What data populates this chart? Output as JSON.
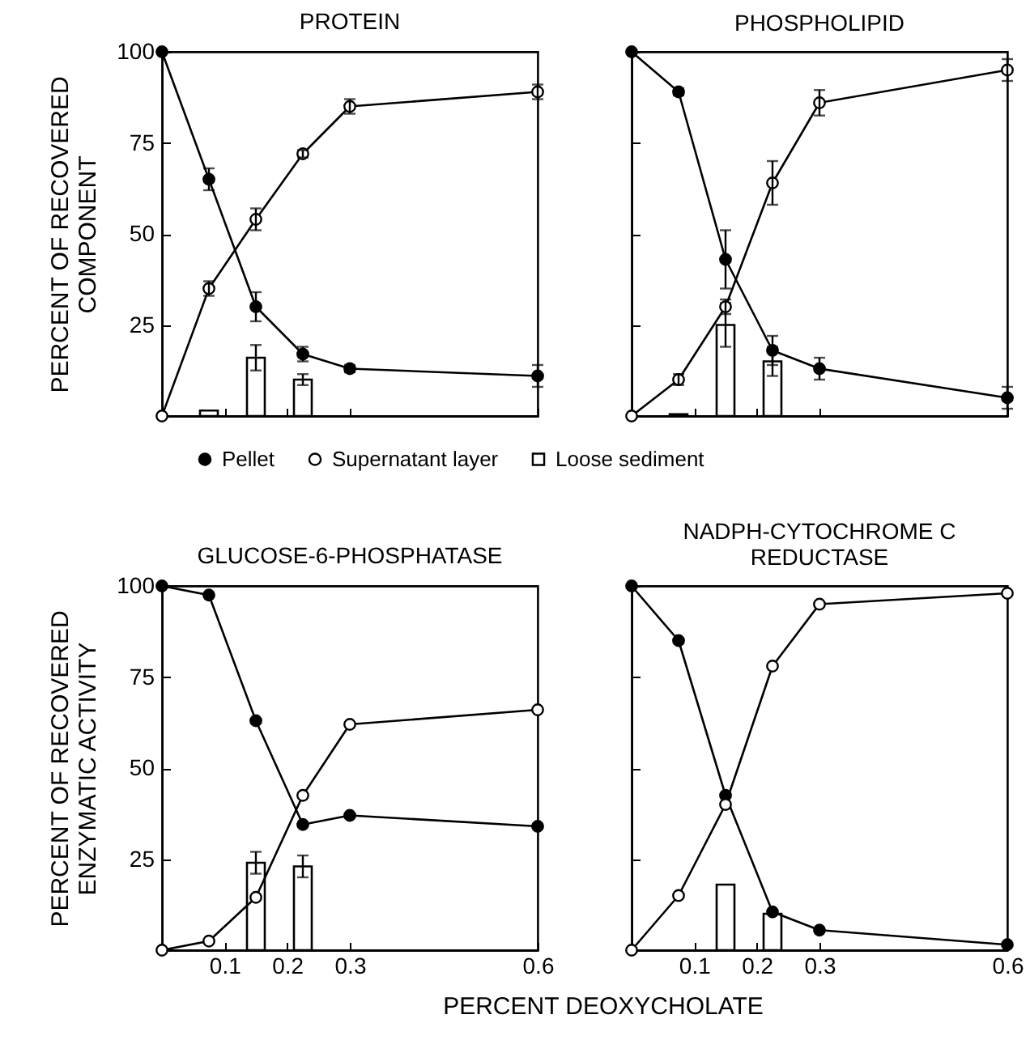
{
  "chart_data": [
    {
      "type": "line",
      "title": "PROTEIN",
      "ylabel": "PERCENT OF RECOVERED\nCOMPONENT",
      "x": [
        0,
        0.075,
        0.15,
        0.225,
        0.3,
        0.6
      ],
      "xlim": [
        0,
        0.6
      ],
      "xticks": [
        0.1,
        0.2,
        0.3,
        0.6
      ],
      "ylim": [
        0,
        100
      ],
      "yticks": [
        25,
        50,
        75,
        100
      ],
      "tick_labels": "y",
      "marker": "circle",
      "legend": "bottom",
      "series": [
        {
          "name": "Pellet",
          "type": "line",
          "color": "#000000",
          "values": [
            100,
            65,
            30,
            17,
            13,
            11
          ],
          "errors": [
            null,
            3,
            4,
            2,
            1,
            3
          ]
        },
        {
          "name": "Supernatant layer",
          "type": "line",
          "color": "#000000",
          "values": [
            0,
            35,
            54,
            72,
            85,
            89
          ],
          "errors": [
            null,
            2,
            3,
            1,
            2,
            2
          ]
        },
        {
          "name": "Loose sediment",
          "type": "bar",
          "color": "#000000",
          "values": [
            null,
            1.5,
            16,
            10,
            null,
            null
          ],
          "errors": [
            null,
            null,
            3.5,
            1.5,
            null,
            null
          ]
        }
      ]
    },
    {
      "type": "line",
      "title": "PHOSPHOLIPID",
      "x": [
        0,
        0.075,
        0.15,
        0.225,
        0.3,
        0.6
      ],
      "xlim": [
        0,
        0.6
      ],
      "xticks": [
        0.1,
        0.2,
        0.3,
        0.6
      ],
      "ylim": [
        0,
        100
      ],
      "yticks": [
        25,
        50,
        75,
        100
      ],
      "tick_labels": false,
      "marker": "circle",
      "series": [
        {
          "type": "line",
          "color": "#000000",
          "values": [
            100,
            89,
            43,
            18,
            13,
            5
          ],
          "errors": [
            null,
            1,
            8,
            4,
            3,
            3
          ]
        },
        {
          "type": "line",
          "color": "#000000",
          "values": [
            0,
            10,
            30,
            64,
            86,
            95
          ],
          "errors": [
            null,
            1.5,
            2,
            6,
            3.5,
            3
          ]
        },
        {
          "type": "bar",
          "color": "#000000",
          "values": [
            null,
            0.5,
            25,
            15,
            null,
            null
          ],
          "errors": [
            null,
            null,
            6,
            4,
            null,
            null
          ]
        }
      ]
    },
    {
      "type": "line",
      "title": "GLUCOSE-6-PHOSPHATASE",
      "ylabel": "PERCENT OF RECOVERED\nENZYMATIC  ACTIVITY",
      "xlabel": "PERCENT  DEOXYCHOLATE",
      "x": [
        0,
        0.075,
        0.15,
        0.225,
        0.3,
        0.6
      ],
      "xlim": [
        0,
        0.6
      ],
      "xticks": [
        0.1,
        0.2,
        0.3,
        0.6
      ],
      "ylim": [
        0,
        100
      ],
      "yticks": [
        25,
        50,
        75,
        100
      ],
      "marker": "circle",
      "series": [
        {
          "type": "line",
          "color": "#000000",
          "values": [
            100,
            97.5,
            63,
            34.5,
            37,
            34
          ]
        },
        {
          "type": "line",
          "color": "#000000",
          "values": [
            0,
            2.5,
            14.5,
            42.5,
            62,
            66
          ]
        },
        {
          "type": "bar",
          "color": "#000000",
          "values": [
            null,
            null,
            24,
            23,
            null,
            null
          ],
          "errors": [
            null,
            null,
            3,
            3,
            null,
            null
          ]
        }
      ]
    },
    {
      "type": "line",
      "title": "NADPH-CYTOCHROME C\nREDUCTASE",
      "x": [
        0,
        0.075,
        0.15,
        0.225,
        0.3,
        0.6
      ],
      "xlim": [
        0,
        0.6
      ],
      "xticks": [
        0.1,
        0.2,
        0.3,
        0.6
      ],
      "ylim": [
        0,
        100
      ],
      "yticks": [
        25,
        50,
        75,
        100
      ],
      "tick_labels": "x",
      "marker": "circle",
      "series": [
        {
          "type": "line",
          "color": "#000000",
          "values": [
            100,
            85,
            42.5,
            10.5,
            5.5,
            1.5
          ]
        },
        {
          "type": "line",
          "color": "#000000",
          "values": [
            0,
            15,
            40,
            78,
            95,
            98
          ]
        },
        {
          "type": "bar",
          "color": "#000000",
          "values": [
            null,
            null,
            18,
            10,
            null,
            null
          ]
        }
      ]
    }
  ]
}
